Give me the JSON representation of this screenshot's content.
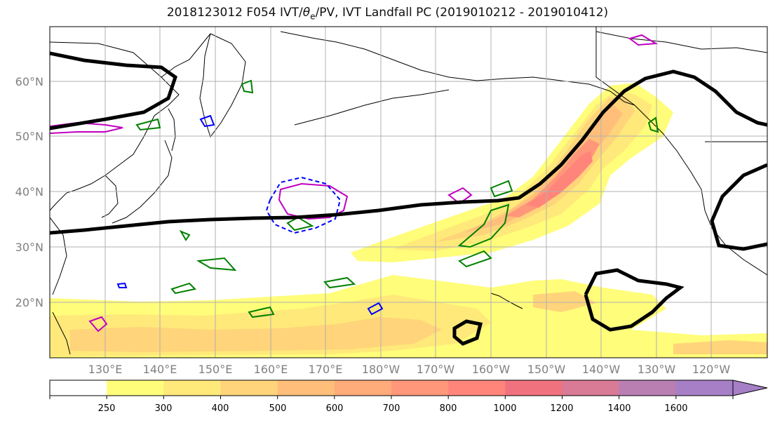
{
  "title": {
    "prefix": "2018123012 F054 IVT/",
    "theta": "θ",
    "theta_sub": "e",
    "suffix": "/PV, IVT Landfall PC (2019010212 - 2019010412)"
  },
  "map": {
    "lat_labels": [
      "60°N",
      "50°N",
      "40°N",
      "30°N",
      "20°N"
    ],
    "lon_labels": [
      "130°E",
      "140°E",
      "150°E",
      "160°E",
      "170°E",
      "180°W",
      "170°W",
      "160°W",
      "150°W",
      "140°W",
      "130°W",
      "120°W"
    ],
    "colors": {
      "ocean": "#ffffff",
      "coast": "#000000",
      "grid": "#b0b0b0",
      "theta_e": "#000000",
      "pv_magenta": "#c000c0",
      "pv_green": "#008000",
      "pv_blue": "#0000ff"
    }
  },
  "colorbar": {
    "ticks": [
      "250",
      "300",
      "400",
      "500",
      "600",
      "700",
      "800",
      "1000",
      "1200",
      "1400",
      "1600"
    ],
    "colors": [
      "#ffffff",
      "#fffd7a",
      "#ffe97a",
      "#ffd47a",
      "#ffbf7a",
      "#ffab7a",
      "#ff977a",
      "#ff857a",
      "#f0727e",
      "#d97a96",
      "#b97fb3",
      "#a67fc6"
    ]
  }
}
